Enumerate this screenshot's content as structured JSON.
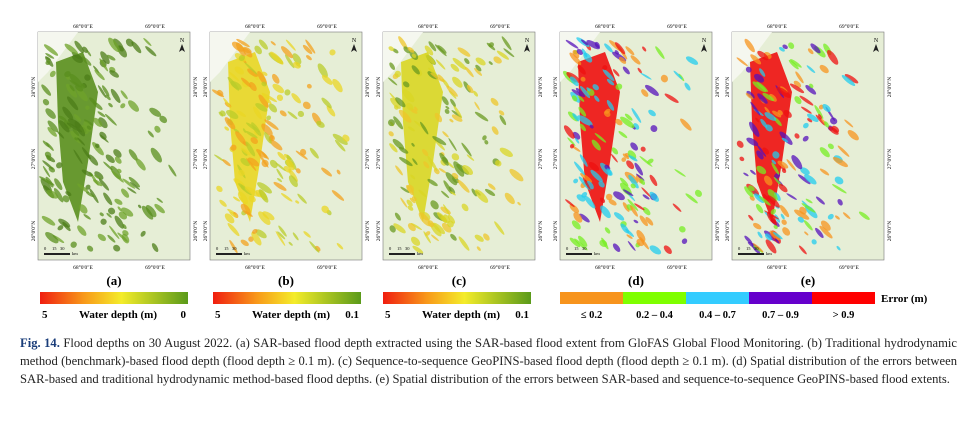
{
  "panels": [
    {
      "label": "(a)"
    },
    {
      "label": "(b)"
    },
    {
      "label": "(c)"
    },
    {
      "label": "(d)"
    },
    {
      "label": "(e)"
    }
  ],
  "map_axes": {
    "lon": [
      "68°0'0\"E",
      "69°0'0\"E"
    ],
    "lat": [
      "28°0'0\"N",
      "27°0'0\"N",
      "26°0'0\"N"
    ],
    "north": "N",
    "scale_ticks": [
      "0",
      "15",
      "30"
    ],
    "scale_unit": "km"
  },
  "legends": [
    {
      "min": "5",
      "title": "Water depth (m)",
      "max": "0"
    },
    {
      "min": "5",
      "title": "Water depth (m)",
      "max": "0.1"
    },
    {
      "min": "5",
      "title": "Water depth (m)",
      "max": "0.1"
    }
  ],
  "error_legend": {
    "title": "Error (m)",
    "classes": [
      "≤ 0.2",
      "0.2 – 0.4",
      "0.4 – 0.7",
      "0.7 – 0.9",
      "> 0.9"
    ]
  },
  "caption": {
    "label": "Fig. 14.",
    "text": "Flood depths on 30 August 2022. (a) SAR-based flood depth extracted using the SAR-based flood extent from GloFAS Global Flood Monitoring. (b) Traditional hydrodynamic method (benchmark)-based flood depth (flood depth ≥ 0.1 m). (c) Sequence-to-sequence GeoPINS-based flood depth (flood depth ≥ 0.1 m). (d) Spatial distribution of the errors between SAR-based and traditional hydrodynamic method-based flood depths. (e) Spatial distribution of the errors between SAR-based and sequence-to-sequence GeoPINS-based flood extents."
  }
}
